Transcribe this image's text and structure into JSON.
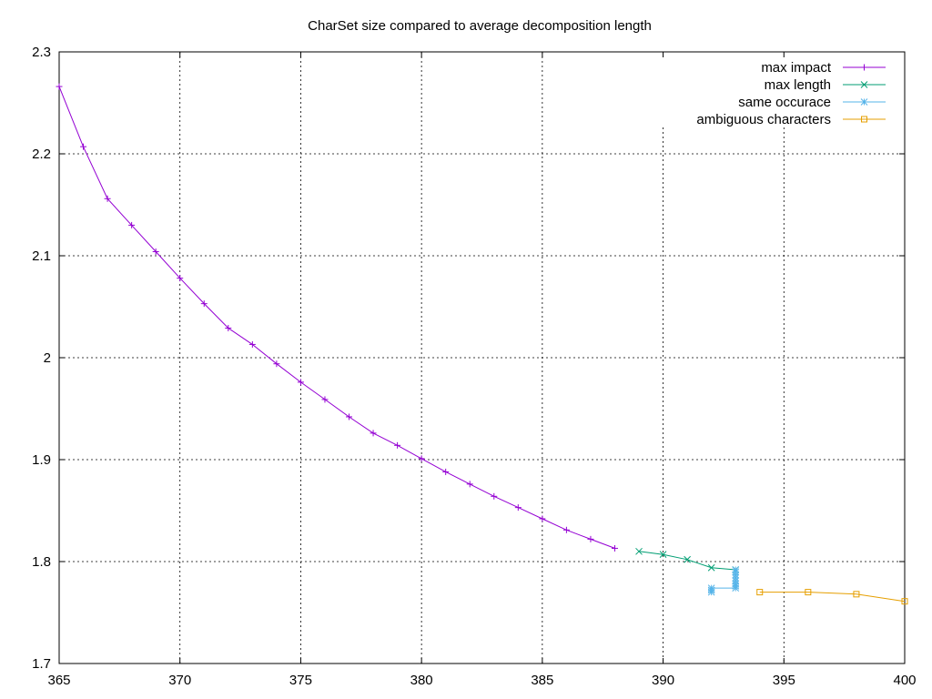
{
  "chart_data": {
    "type": "line",
    "title": "CharSet size compared to average decomposition length",
    "xlabel": "",
    "ylabel": "",
    "xlim": [
      365,
      400
    ],
    "ylim": [
      1.7,
      2.3
    ],
    "x_ticks": [
      "365",
      "370",
      "375",
      "380",
      "385",
      "390",
      "395",
      "400"
    ],
    "y_ticks": [
      "1.7",
      "1.8",
      "1.9",
      "2",
      "2.1",
      "2.2",
      "2.3"
    ],
    "grid": true,
    "legend_position": "top-right",
    "series": [
      {
        "name": "max impact",
        "color": "#9400d3",
        "marker": "plus",
        "points": [
          [
            365,
            2.266
          ],
          [
            366,
            2.207
          ],
          [
            367,
            2.156
          ],
          [
            368,
            2.13
          ],
          [
            369,
            2.104
          ],
          [
            370,
            2.078
          ],
          [
            371,
            2.053
          ],
          [
            372,
            2.029
          ],
          [
            373,
            2.013
          ],
          [
            374,
            1.994
          ],
          [
            375,
            1.976
          ],
          [
            376,
            1.959
          ],
          [
            377,
            1.942
          ],
          [
            378,
            1.926
          ],
          [
            379,
            1.914
          ],
          [
            380,
            1.901
          ],
          [
            381,
            1.888
          ],
          [
            382,
            1.876
          ],
          [
            383,
            1.864
          ],
          [
            384,
            1.853
          ],
          [
            385,
            1.842
          ],
          [
            386,
            1.831
          ],
          [
            387,
            1.822
          ],
          [
            388,
            1.813
          ]
        ]
      },
      {
        "name": "max length",
        "color": "#009e73",
        "marker": "cross",
        "points": [
          [
            389,
            1.81
          ],
          [
            390,
            1.807
          ],
          [
            391,
            1.802
          ],
          [
            392,
            1.794
          ],
          [
            393,
            1.792
          ]
        ]
      },
      {
        "name": "same occurace",
        "color": "#56b4e9",
        "marker": "star",
        "points": [
          [
            393,
            1.792
          ],
          [
            393,
            1.79
          ],
          [
            393,
            1.787
          ],
          [
            393,
            1.784
          ],
          [
            393,
            1.781
          ],
          [
            393,
            1.778
          ],
          [
            393,
            1.776
          ],
          [
            393,
            1.774
          ],
          [
            392,
            1.774
          ],
          [
            392,
            1.772
          ],
          [
            392,
            1.77
          ]
        ]
      },
      {
        "name": "ambiguous characters",
        "color": "#e69f00",
        "marker": "square",
        "points": [
          [
            394,
            1.77
          ],
          [
            396,
            1.77
          ],
          [
            398,
            1.768
          ],
          [
            400,
            1.761
          ]
        ]
      }
    ]
  }
}
